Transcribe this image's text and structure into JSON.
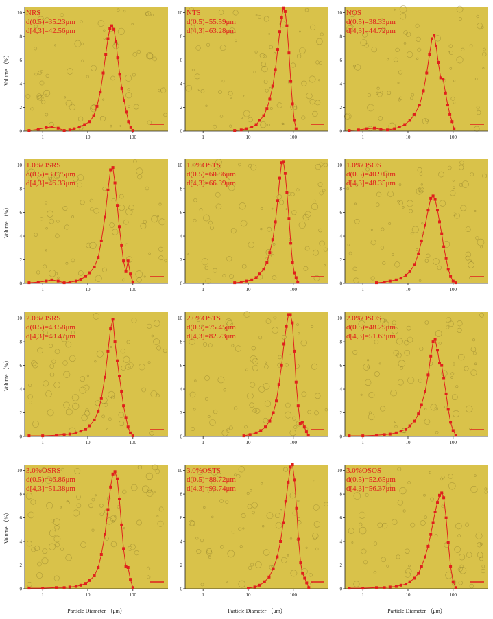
{
  "colors": {
    "background": "#d9c24a",
    "series": "#e0201c",
    "axis": "#222222"
  },
  "axis_labels": {
    "x": "Particle Diameter （μm）",
    "y": "Volume （%）"
  },
  "chart_data": [
    {
      "type": "line",
      "xscale": "log",
      "xlim": [
        0.4,
        600
      ],
      "ylim": [
        0,
        10.5
      ],
      "xticks": [
        "1",
        "10",
        "100"
      ],
      "yticks": [
        "0",
        "2",
        "4",
        "6",
        "8",
        "10"
      ],
      "annotations": [
        "NRS",
        "d(0.5)=35.23μm",
        "d[4,3]=42.56μm"
      ],
      "series": [
        {
          "x": [
            0.5,
            0.8,
            1.2,
            1.6,
            2.2,
            3,
            4,
            5,
            6.5,
            8.5,
            11,
            13.5,
            16,
            19,
            22,
            25,
            28,
            31,
            34,
            38,
            42,
            46,
            51,
            57,
            64,
            72,
            80,
            90,
            100
          ],
          "y": [
            0.05,
            0.15,
            0.3,
            0.35,
            0.25,
            0.05,
            0.1,
            0.2,
            0.35,
            0.55,
            0.8,
            1.3,
            2.1,
            3.3,
            4.9,
            6.5,
            7.8,
            8.7,
            8.9,
            8.6,
            7.6,
            6.2,
            4.8,
            3.6,
            2.6,
            1.6,
            0.8,
            0.3,
            0.05
          ]
        }
      ]
    },
    {
      "type": "line",
      "xscale": "log",
      "xlim": [
        0.4,
        600
      ],
      "ylim": [
        0,
        10.5
      ],
      "xticks": [
        "1",
        "10",
        "100"
      ],
      "yticks": [
        "0",
        "2",
        "4",
        "6",
        "8",
        "10"
      ],
      "annotations": [
        "NTS",
        "d(0.5)=55.59μm",
        "d[4,3]=63.28μm"
      ],
      "series": [
        {
          "x": [
            5,
            7,
            9,
            12,
            15,
            18,
            22,
            26,
            30,
            35,
            40,
            45,
            50,
            55,
            60,
            66,
            72,
            80,
            88,
            96,
            105,
            115
          ],
          "y": [
            0.05,
            0.1,
            0.2,
            0.35,
            0.55,
            0.9,
            1.3,
            1.9,
            2.7,
            3.8,
            5.2,
            6.9,
            8.4,
            9.6,
            10.4,
            10.1,
            8.9,
            6.6,
            4.2,
            2.3,
            0.9,
            0.2
          ]
        }
      ]
    },
    {
      "type": "line",
      "xscale": "log",
      "xlim": [
        0.4,
        600
      ],
      "ylim": [
        0,
        10.5
      ],
      "xticks": [
        "1",
        "10",
        "100"
      ],
      "yticks": [
        "0",
        "2",
        "4",
        "6",
        "8",
        "10"
      ],
      "annotations": [
        "NOS",
        "d(0.5)=38.33μm",
        "d[4,3]=44.72μm"
      ],
      "series": [
        {
          "x": [
            0.5,
            0.8,
            1.2,
            1.8,
            2.5,
            3.5,
            5,
            6.5,
            8.5,
            11,
            14,
            18,
            22,
            26,
            30,
            34,
            38,
            42,
            47,
            53,
            60,
            68,
            76,
            85,
            95,
            105
          ],
          "y": [
            0.05,
            0.1,
            0.2,
            0.25,
            0.15,
            0.1,
            0.2,
            0.35,
            0.55,
            0.9,
            1.4,
            2.2,
            3.4,
            4.9,
            6.5,
            7.8,
            8.1,
            7.2,
            5.8,
            4.5,
            4.4,
            3.2,
            2.2,
            1.4,
            0.8,
            0.2
          ]
        }
      ]
    },
    {
      "type": "line",
      "xscale": "log",
      "xlim": [
        0.4,
        600
      ],
      "ylim": [
        0,
        10.5
      ],
      "xticks": [
        "1",
        "10",
        "100"
      ],
      "yticks": [
        "0",
        "2",
        "4",
        "6",
        "8",
        "10"
      ],
      "annotations": [
        "1.0%OSRS",
        "d(0.5)=38.75μm",
        "d[4,3]=46.33μm"
      ],
      "series": [
        {
          "x": [
            0.5,
            0.8,
            1.2,
            1.6,
            2.2,
            3,
            4,
            5.5,
            7,
            9,
            11,
            14,
            17,
            20,
            24,
            28,
            32,
            36,
            40,
            45,
            50,
            56,
            62,
            70,
            78,
            88,
            100
          ],
          "y": [
            0.05,
            0.1,
            0.2,
            0.3,
            0.2,
            0.05,
            0.1,
            0.2,
            0.35,
            0.6,
            0.9,
            1.4,
            2.2,
            3.6,
            5.6,
            7.9,
            9.6,
            9.8,
            8.5,
            6.6,
            4.8,
            3.2,
            1.9,
            1.0,
            1.9,
            0.8,
            0.1
          ]
        }
      ]
    },
    {
      "type": "line",
      "xscale": "log",
      "xlim": [
        0.4,
        600
      ],
      "ylim": [
        0,
        10.5
      ],
      "xticks": [
        "1",
        "10",
        "100"
      ],
      "yticks": [
        "0",
        "2",
        "4",
        "6",
        "8",
        "10"
      ],
      "annotations": [
        "1.0%OSTS",
        "d(0.5)=60.86μm",
        "d[4,3]=66.39μm"
      ],
      "series": [
        {
          "x": [
            5,
            7,
            9,
            12,
            15,
            18,
            22,
            26,
            30,
            35,
            40,
            45,
            50,
            55,
            60,
            66,
            72,
            80,
            88,
            96,
            105,
            115,
            125
          ],
          "y": [
            0.05,
            0.1,
            0.2,
            0.3,
            0.5,
            0.8,
            1.2,
            1.8,
            2.6,
            3.7,
            5.2,
            7.0,
            8.9,
            10.2,
            10.3,
            9.3,
            7.7,
            5.5,
            3.4,
            1.8,
            0.9,
            0.5,
            0.1
          ]
        }
      ]
    },
    {
      "type": "line",
      "xscale": "log",
      "xlim": [
        0.4,
        600
      ],
      "ylim": [
        0,
        10.5
      ],
      "xticks": [
        "1",
        "10",
        "100"
      ],
      "yticks": [
        "0",
        "2",
        "4",
        "6",
        "8",
        "10"
      ],
      "annotations": [
        "1.0%OSOS",
        "d(0.5)=40.91μm",
        "d[4,3]=48.35μm"
      ],
      "series": [
        {
          "x": [
            2,
            3,
            4,
            5.5,
            7,
            9,
            11,
            14,
            17,
            20,
            24,
            28,
            32,
            36,
            40,
            45,
            50,
            56,
            62,
            70,
            78,
            88,
            100,
            115
          ],
          "y": [
            0.05,
            0.1,
            0.2,
            0.3,
            0.45,
            0.7,
            1.0,
            1.6,
            2.5,
            3.6,
            4.9,
            6.2,
            7.2,
            7.4,
            7.1,
            6.2,
            5.2,
            4.2,
            3.1,
            2.1,
            1.2,
            0.6,
            0.2,
            0.05
          ]
        }
      ]
    },
    {
      "type": "line",
      "xscale": "log",
      "xlim": [
        0.4,
        600
      ],
      "ylim": [
        0,
        10.5
      ],
      "xticks": [
        "1",
        "10",
        "100"
      ],
      "yticks": [
        "0",
        "2",
        "4",
        "6",
        "8",
        "10"
      ],
      "annotations": [
        "2.0%OSRS",
        "d(0.5)=43.58μm",
        "d[4,3]=48.47μm"
      ],
      "series": [
        {
          "x": [
            0.5,
            1,
            2,
            3,
            4,
            5.5,
            7,
            9,
            11,
            14,
            17,
            20,
            24,
            28,
            32,
            36,
            40,
            45,
            50,
            56,
            62,
            70,
            78,
            88,
            100
          ],
          "y": [
            0.05,
            0.05,
            0.1,
            0.15,
            0.2,
            0.3,
            0.45,
            0.6,
            0.9,
            1.4,
            2.1,
            3.2,
            5.0,
            7.2,
            9.1,
            9.9,
            8.0,
            6.4,
            5.1,
            3.8,
            2.6,
            1.6,
            0.8,
            0.3,
            0.05
          ]
        }
      ]
    },
    {
      "type": "line",
      "xscale": "log",
      "xlim": [
        0.4,
        600
      ],
      "ylim": [
        0,
        10.5
      ],
      "xticks": [
        "1",
        "10",
        "100"
      ],
      "yticks": [
        "0",
        "2",
        "4",
        "6",
        "8",
        "10"
      ],
      "annotations": [
        "2.0%OSTS",
        "d(0.5)=75.45μm",
        "d[4,3]=82.73μm"
      ],
      "series": [
        {
          "x": [
            8,
            11,
            15,
            19,
            24,
            30,
            36,
            42,
            48,
            55,
            62,
            70,
            78,
            86,
            95,
            105,
            115,
            128,
            142,
            158,
            175,
            195,
            215
          ],
          "y": [
            0.05,
            0.15,
            0.3,
            0.5,
            0.8,
            1.3,
            2.0,
            3.0,
            4.4,
            6.0,
            7.8,
            9.3,
            10.3,
            10.3,
            9.6,
            7.2,
            4.6,
            2.6,
            1.1,
            1.2,
            0.8,
            0.4,
            0.1
          ]
        }
      ]
    },
    {
      "type": "line",
      "xscale": "log",
      "xlim": [
        0.4,
        600
      ],
      "ylim": [
        0,
        10.5
      ],
      "xticks": [
        "1",
        "10",
        "100"
      ],
      "yticks": [
        "0",
        "2",
        "4",
        "6",
        "8",
        "10"
      ],
      "annotations": [
        "2.0%OSOS",
        "d(0.5)=48.29μm",
        "d[4,3]=51.63μm"
      ],
      "series": [
        {
          "x": [
            0.5,
            1,
            2,
            3,
            4,
            5.5,
            7,
            9,
            11,
            14,
            17,
            20,
            24,
            28,
            32,
            36,
            40,
            45,
            50,
            56,
            62,
            70,
            78,
            88,
            100,
            115
          ],
          "y": [
            0.05,
            0.05,
            0.1,
            0.15,
            0.2,
            0.3,
            0.45,
            0.6,
            0.9,
            1.3,
            1.9,
            2.7,
            3.8,
            5.2,
            6.8,
            8.0,
            8.2,
            7.3,
            6.2,
            6.0,
            4.9,
            3.6,
            2.3,
            1.2,
            0.5,
            0.1
          ]
        }
      ]
    },
    {
      "type": "line",
      "xscale": "log",
      "xlim": [
        0.4,
        600
      ],
      "ylim": [
        0,
        10.5
      ],
      "xticks": [
        "1",
        "10",
        "100"
      ],
      "yticks": [
        "0",
        "2",
        "4",
        "6",
        "8",
        "10"
      ],
      "annotations": [
        "3.0%OSRS",
        "d(0.5)=46.86μm",
        "d[4,3]=51.38μm"
      ],
      "series": [
        {
          "x": [
            0.5,
            1,
            2,
            3,
            4,
            5.5,
            7,
            9,
            11,
            14,
            17,
            20,
            24,
            28,
            32,
            36,
            40,
            45,
            50,
            56,
            62,
            70,
            78,
            88,
            100
          ],
          "y": [
            0.05,
            0.05,
            0.1,
            0.1,
            0.15,
            0.2,
            0.3,
            0.45,
            0.7,
            1.1,
            1.8,
            2.9,
            4.6,
            6.7,
            8.6,
            9.7,
            9.9,
            9.3,
            7.6,
            5.4,
            3.4,
            1.9,
            1.8,
            0.8,
            0.1
          ]
        }
      ]
    },
    {
      "type": "line",
      "xscale": "log",
      "xlim": [
        0.4,
        600
      ],
      "ylim": [
        0,
        10.5
      ],
      "xticks": [
        "1",
        "10",
        "100"
      ],
      "yticks": [
        "0",
        "2",
        "4",
        "6",
        "8",
        "10"
      ],
      "annotations": [
        "3.0%OSTS",
        "d(0.5)=88.72μm",
        "d[4,3]=93.74μm"
      ],
      "series": [
        {
          "x": [
            10,
            14,
            18,
            23,
            29,
            36,
            44,
            52,
            60,
            68,
            77,
            86,
            96,
            106,
            118,
            130,
            145,
            160,
            178,
            198,
            220
          ],
          "y": [
            0.05,
            0.15,
            0.3,
            0.6,
            1.0,
            1.7,
            2.7,
            4.0,
            5.6,
            7.4,
            9.0,
            10.3,
            10.5,
            9.2,
            6.8,
            4.2,
            2.2,
            1.3,
            0.9,
            0.5,
            0.1
          ]
        }
      ]
    },
    {
      "type": "line",
      "xscale": "log",
      "xlim": [
        0.4,
        600
      ],
      "ylim": [
        0,
        10.5
      ],
      "xticks": [
        "1",
        "10",
        "100"
      ],
      "yticks": [
        "0",
        "2",
        "4",
        "6",
        "8",
        "10"
      ],
      "annotations": [
        "3.0%OSOS",
        "d(0.5)=52.65μm",
        "d[4,3]=56.37μm"
      ],
      "series": [
        {
          "x": [
            0.5,
            1,
            2,
            3,
            4,
            5.5,
            7,
            9,
            11,
            14,
            17,
            20,
            24,
            28,
            32,
            36,
            40,
            45,
            50,
            56,
            62,
            70,
            78,
            88,
            100,
            115
          ],
          "y": [
            0.05,
            0.05,
            0.1,
            0.1,
            0.15,
            0.2,
            0.3,
            0.4,
            0.6,
            0.9,
            1.3,
            1.9,
            2.7,
            3.6,
            4.6,
            5.6,
            6.5,
            7.3,
            7.9,
            8.1,
            7.7,
            6.0,
            3.9,
            1.9,
            0.6,
            0.1
          ]
        }
      ]
    }
  ]
}
